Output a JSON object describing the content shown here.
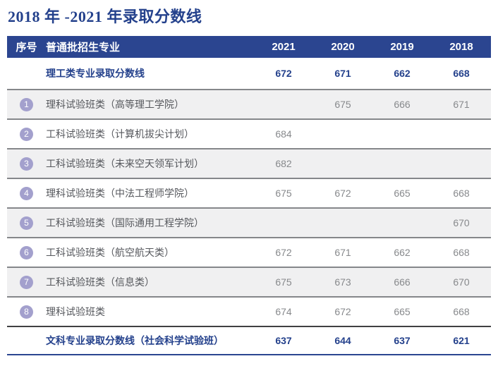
{
  "title": "2018 年 -2021 年录取分数线",
  "table": {
    "header": {
      "col_no": "序号",
      "col_major": "普通批招生专业",
      "years": [
        "2021",
        "2020",
        "2019",
        "2018"
      ]
    },
    "science_line": {
      "label": "理工类专业录取分数线",
      "values": [
        "672",
        "671",
        "662",
        "668"
      ]
    },
    "rows": [
      {
        "no": "1",
        "major": "理科试验班类（高等理工学院）",
        "values": [
          "",
          "675",
          "666",
          "671"
        ]
      },
      {
        "no": "2",
        "major": "工科试验班类（计算机拔尖计划）",
        "values": [
          "684",
          "",
          "",
          ""
        ]
      },
      {
        "no": "3",
        "major": "工科试验班类（未来空天领军计划）",
        "values": [
          "682",
          "",
          "",
          ""
        ]
      },
      {
        "no": "4",
        "major": "理科试验班类（中法工程师学院）",
        "values": [
          "675",
          "672",
          "665",
          "668"
        ]
      },
      {
        "no": "5",
        "major": "工科试验班类（国际通用工程学院）",
        "values": [
          "",
          "",
          "",
          "670"
        ]
      },
      {
        "no": "6",
        "major": "工科试验班类（航空航天类）",
        "values": [
          "672",
          "671",
          "662",
          "668"
        ]
      },
      {
        "no": "7",
        "major": "工科试验班类（信息类）",
        "values": [
          "675",
          "673",
          "666",
          "670"
        ]
      },
      {
        "no": "8",
        "major": "理科试验班类",
        "values": [
          "674",
          "672",
          "665",
          "668"
        ]
      }
    ],
    "arts_line": {
      "label": "文科专业录取分数线（社会科学试验班）",
      "values": [
        "637",
        "644",
        "637",
        "621"
      ]
    }
  },
  "colors": {
    "header_background": "#2b4590",
    "title_and_bold_text": "#24418c",
    "number_badge": "#a3a0cd",
    "alternate_row_background": "#f0f0f1",
    "row_separator_line": "#85878a",
    "footer_top_line": "#3f4042",
    "major_text": "#55575c",
    "value_text": "#87898c"
  }
}
